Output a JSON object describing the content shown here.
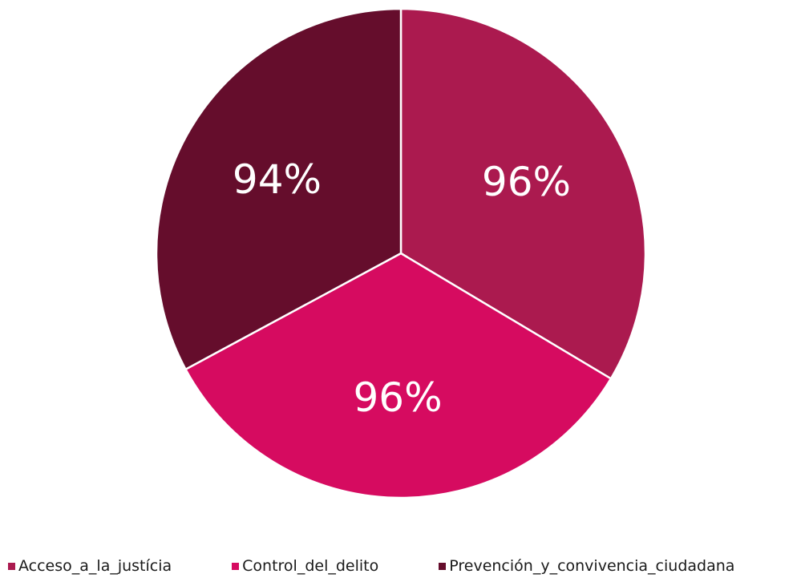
{
  "chart_data": {
    "type": "pie",
    "title": "",
    "slices": [
      {
        "name": "Acceso_a_la_justícia",
        "value": 96,
        "label": "96%",
        "color": "#AB1A4F"
      },
      {
        "name": "Control_del_delito",
        "value": 96,
        "label": "96%",
        "color": "#D60B60"
      },
      {
        "name": "Prevención_y_convivencia_ciudadana",
        "value": 94,
        "label": "94%",
        "color": "#650D2C"
      }
    ],
    "legend_position": "bottom",
    "slice_border_color": "#ffffff"
  }
}
